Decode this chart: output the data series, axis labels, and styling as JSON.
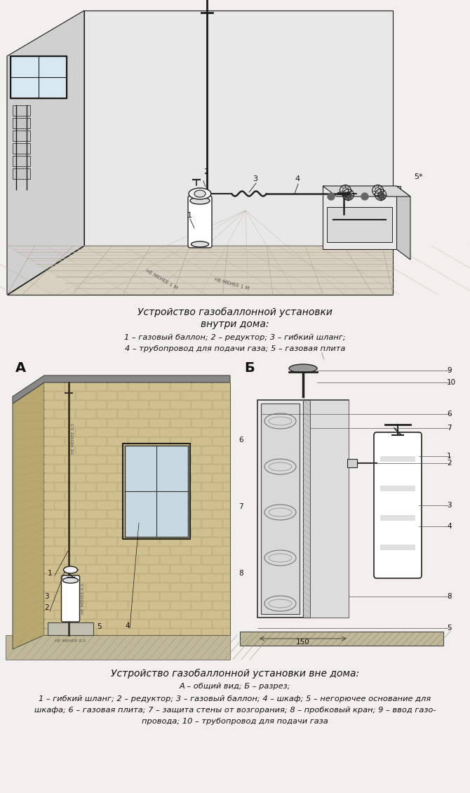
{
  "bg_color": "#f2f0ec",
  "title1_line1": "Устройство газобаллонной установки",
  "title1_line2": "внутри дома:",
  "caption1": "1 – газовый баллон; 2 – редуктор; 3 – гибкий шланг;",
  "caption1b": "4 – трубопровод для подачи газа; 5 – газовая плита",
  "title2": "Устройство газобаллонной установки вне дома:",
  "caption2a": "А – общий вид; Б – разрез;",
  "caption2b": "1 – гибкий шланг; 2 – редуктор; 3 – газовый баллон; 4 – шкаф; 5 – негорючее основание для",
  "caption2c": "шкафа; 6 – газовая плита; 7 – защита стены от возгорания; 8 – пробковый кран; 9 – ввод газо-",
  "caption2d": "провода; 10 – трубопровод для подачи газа",
  "label_A": "А",
  "label_B": "Б",
  "font_size_title": 10,
  "font_size_caption": 8.2,
  "font_size_label": 14
}
